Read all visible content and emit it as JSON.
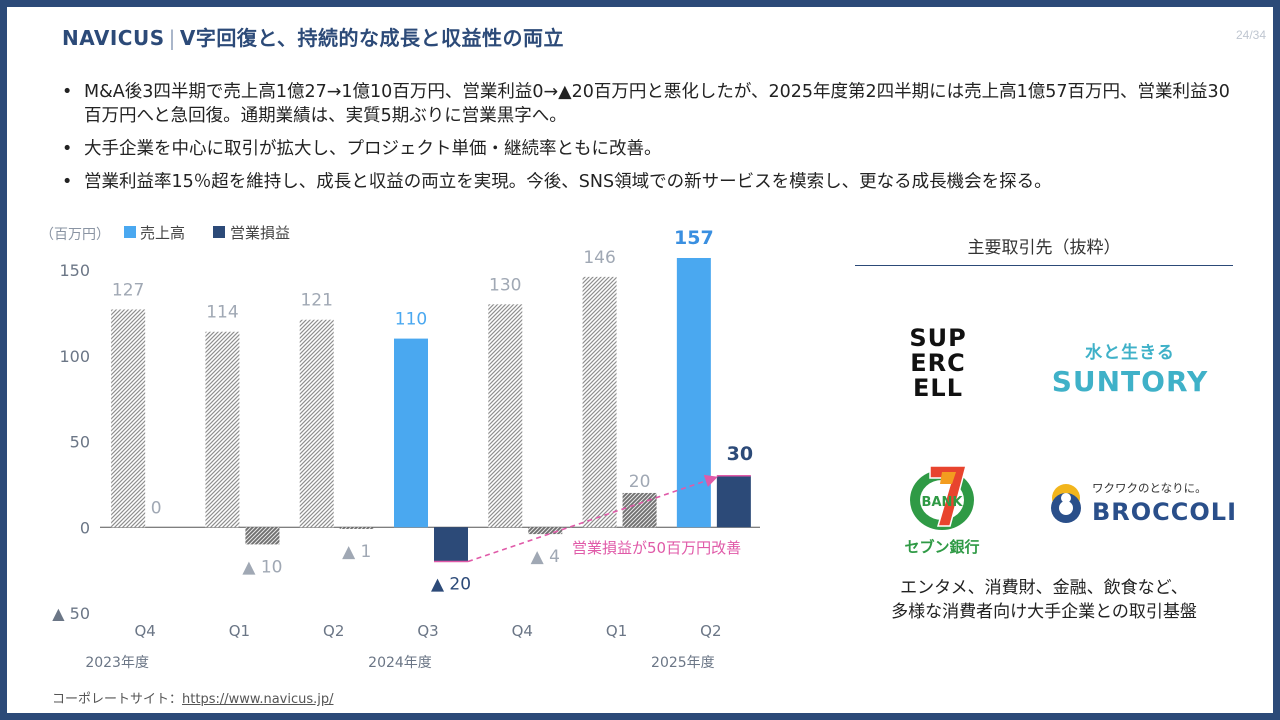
{
  "header": {
    "brand": "NAVICUS",
    "separator": "|",
    "title": "V字回復と、持続的な成長と収益性の両立"
  },
  "page": "24/34",
  "bullets": [
    "M&A後3四半期で売上高1億27→1億10百万円、営業利益0→▲20百万円と悪化したが、2025年度第2四半期には売上高1億57百万円、営業利益30百万円へと急回復。通期業績は、実質5期ぶりに営業黒字へ。",
    "大手企業を中心に取引が拡大し、プロジェクト単価・継続率ともに改善。",
    "営業利益率15％超を維持し、成長と収益の両立を実現。今後、SNS領域での新サービスを模索し、更なる成長機会を探る。"
  ],
  "chart_data": {
    "type": "bar",
    "unit_label": "（百万円）",
    "categories": [
      "Q4",
      "Q1",
      "Q2",
      "Q3",
      "Q4",
      "Q1",
      "Q2"
    ],
    "year_labels": [
      {
        "label": "2023年度",
        "category_index": 0
      },
      {
        "label": "2024年度",
        "category_index": 3
      },
      {
        "label": "2025年度",
        "category_index": 6
      }
    ],
    "series": [
      {
        "name": "売上高",
        "values": [
          127,
          114,
          121,
          110,
          130,
          146,
          157
        ],
        "data_labels": [
          "127",
          "114",
          "121",
          "110",
          "130",
          "146",
          "157"
        ]
      },
      {
        "name": "営業損益",
        "values": [
          0,
          -10,
          -1,
          -20,
          -4,
          20,
          30
        ],
        "data_labels": [
          "0",
          "▲ 10",
          "▲ 1",
          "▲ 20",
          "▲ 4",
          "20",
          "30"
        ]
      }
    ],
    "highlighted_categories": [
      3,
      6
    ],
    "y_ticks": [
      {
        "value": 150,
        "label": "150"
      },
      {
        "value": 100,
        "label": "100"
      },
      {
        "value": 50,
        "label": "50"
      },
      {
        "value": 0,
        "label": "0"
      },
      {
        "value": -50,
        "label": "▲ 50"
      }
    ],
    "ylim": [
      -50,
      150
    ],
    "legend_position": "top-left",
    "annotation": {
      "text": "営業損益が50百万円改善",
      "from_category": 3,
      "to_category": 6
    },
    "colors": {
      "revenue": "#4aa8f0",
      "profit": "#2c4a78",
      "hatch": "#9a9a9a",
      "revenue_label_highlight": "#3a8fe0",
      "profit_label_highlight": "#2c4a78",
      "muted_label": "#a0a8b4",
      "annotation": "#e05aa8"
    }
  },
  "partners": {
    "title": "主要取引先（抜粋）",
    "logos": {
      "supercell": [
        "SUP",
        "ERC",
        "ELL"
      ],
      "suntory_tagline": "水と生きる",
      "suntory_name": "SUNTORY",
      "sevenbank_mark": "BANK",
      "sevenbank_name": "セブン銀行",
      "broccoli_tagline": "ワクワクのとなりに。",
      "broccoli_name": "BROCCOLI"
    },
    "description": [
      "エンタメ、消費財、金融、飲食など、",
      "多様な消費者向け大手企業との取引基盤"
    ]
  },
  "footer": {
    "label": "コーポレートサイト：",
    "url": "https://www.navicus.jp/"
  }
}
